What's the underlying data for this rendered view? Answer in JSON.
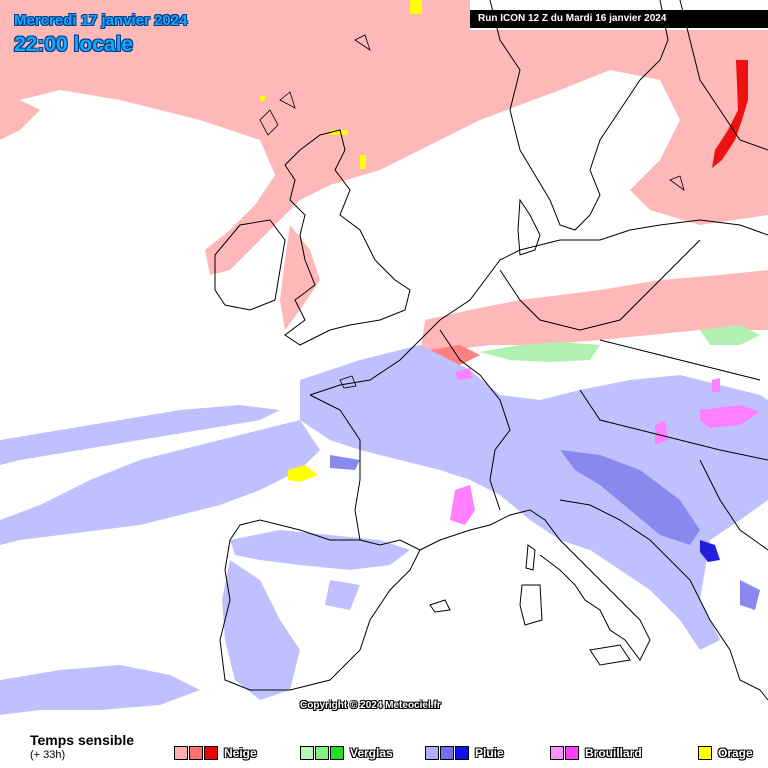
{
  "header": {
    "date": "Mercredi 17 janvier 2024",
    "time": "22:00 locale",
    "run": "Run ICON 12 Z du Mardi 16 janvier 2024"
  },
  "copyright": "Copyright © 2024 Meteociel.fr",
  "legend": {
    "title": "Temps sensible",
    "subtitle": "(+ 33h)",
    "categories": [
      {
        "label": "Neige",
        "colors": [
          "#ffb0b0",
          "#ff7070",
          "#ee0000"
        ]
      },
      {
        "label": "Verglas",
        "colors": [
          "#b8f5b8",
          "#80f080",
          "#22dd22"
        ]
      },
      {
        "label": "Pluie",
        "colors": [
          "#b0b0ff",
          "#7070f0",
          "#1010ee"
        ]
      },
      {
        "label": "Brouillard",
        "colors": [
          "#ff90ff",
          "#ff40ff"
        ]
      },
      {
        "label": "Orage",
        "colors": [
          "#ffff00"
        ]
      }
    ]
  },
  "colors": {
    "snow_light": "#ffb8b8",
    "snow_mid": "#ff8080",
    "snow_heavy": "#ee1111",
    "rain_light": "#c0c0ff",
    "rain_mid": "#8888ee",
    "rain_heavy": "#2020dd",
    "ice": "#b0f0b0",
    "fog": "#ff80ff",
    "storm": "#ffff00",
    "coast": "#000000"
  }
}
